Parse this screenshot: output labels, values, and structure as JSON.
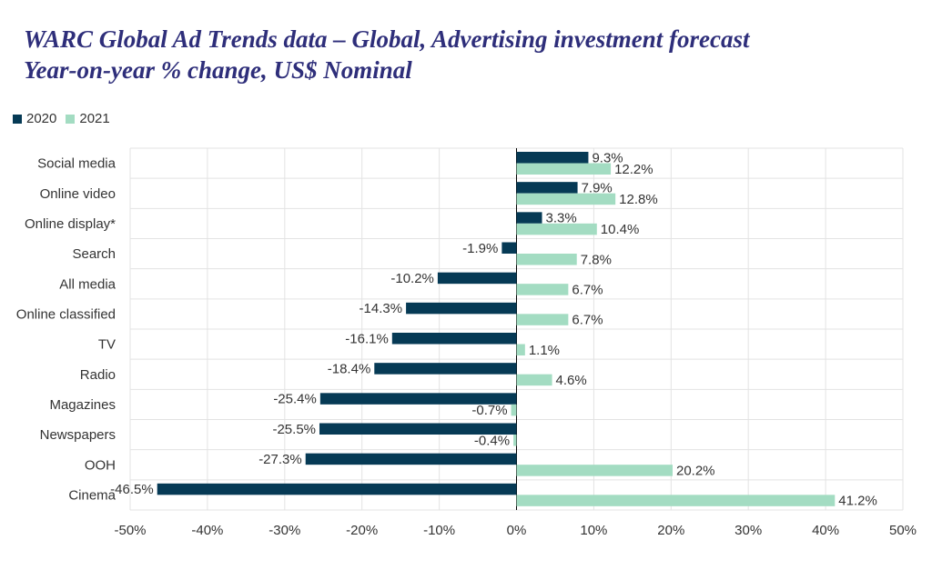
{
  "title": {
    "line1": "WARC Global Ad Trends data – Global, Advertising investment forecast",
    "line2": "Year-on-year % change, US$ Nominal"
  },
  "colors": {
    "series_2020": "#063a55",
    "series_2021": "#a3dcc2",
    "grid": "#e3e3e3",
    "text": "#333333"
  },
  "chart_data": {
    "type": "bar",
    "orientation": "horizontal",
    "title": "WARC Global Ad Trends data – Global, Advertising investment forecast Year-on-year % change, US$ Nominal",
    "categories": [
      "Social media",
      "Online video",
      "Online display*",
      "Search",
      "All media",
      "Online classified",
      "TV",
      "Radio",
      "Magazines",
      "Newspapers",
      "OOH",
      "Cinema"
    ],
    "series": [
      {
        "name": "2020",
        "values": [
          9.3,
          7.9,
          3.3,
          -1.9,
          -10.2,
          -14.3,
          -16.1,
          -18.4,
          -25.4,
          -25.5,
          -27.3,
          -46.5
        ]
      },
      {
        "name": "2021",
        "values": [
          12.2,
          12.8,
          10.4,
          7.8,
          6.7,
          6.7,
          1.1,
          4.6,
          -0.7,
          -0.4,
          20.2,
          41.2
        ]
      }
    ],
    "xlim": [
      -50,
      50
    ],
    "xticks": [
      -50,
      -40,
      -30,
      -20,
      -10,
      0,
      10,
      20,
      30,
      40,
      50
    ],
    "tick_suffix": "%",
    "value_suffix": "%",
    "grid": true,
    "legend": "top-left",
    "xlabel": "",
    "ylabel": ""
  }
}
